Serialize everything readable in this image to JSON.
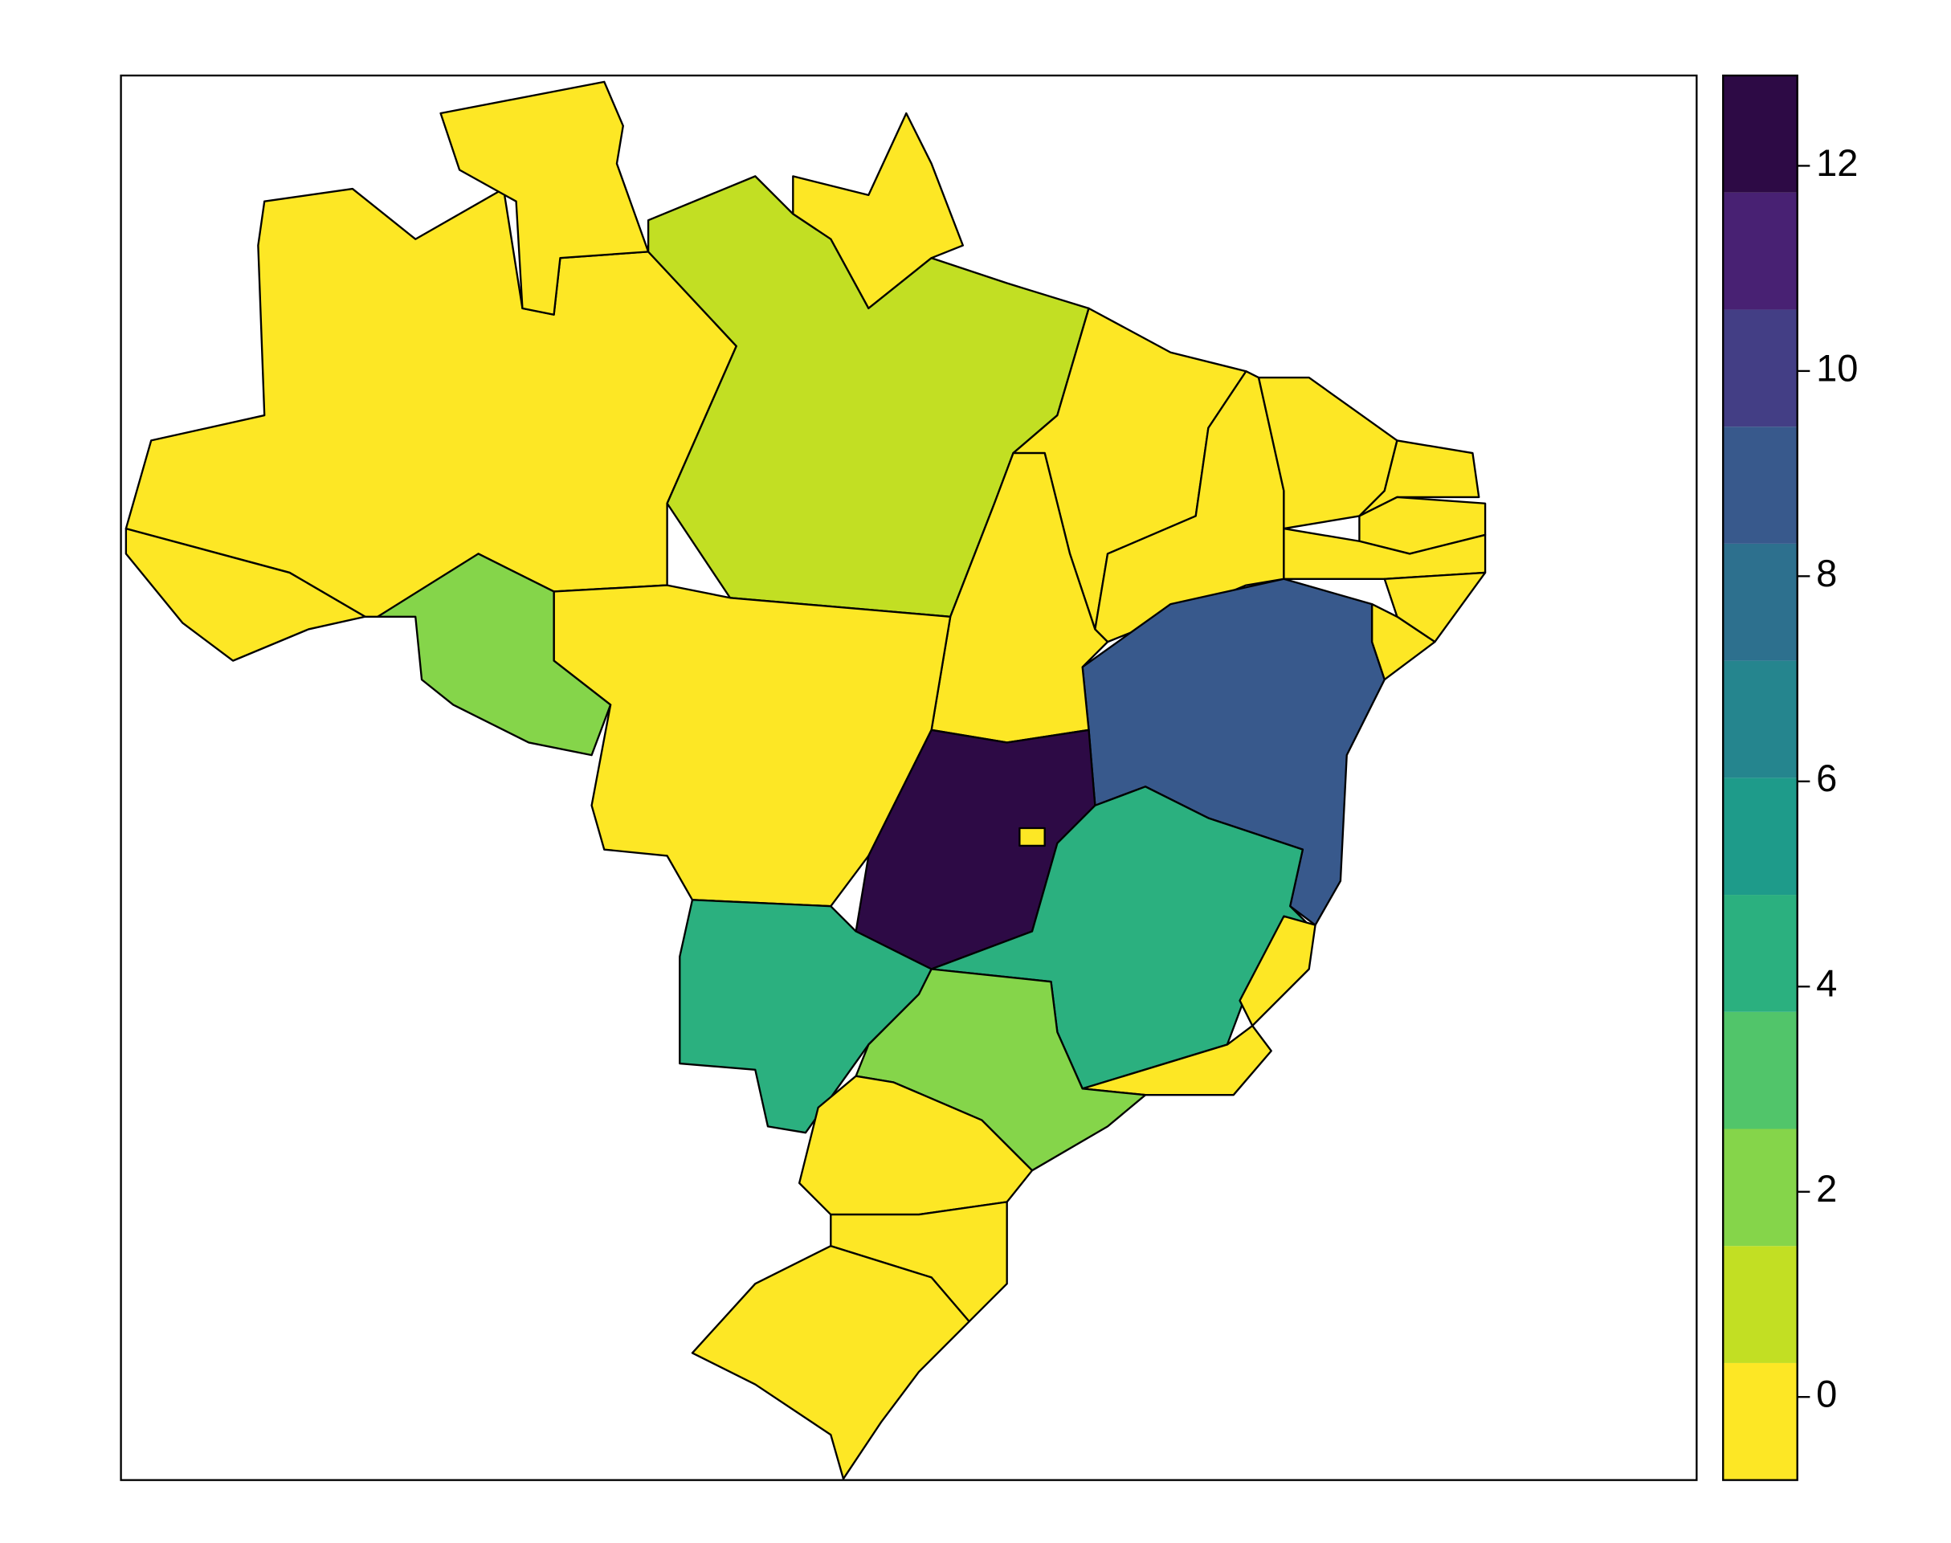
{
  "chart_data": {
    "type": "choropleth",
    "values": [
      0,
      0,
      0,
      0,
      1,
      0,
      0,
      0,
      0,
      0,
      0,
      0,
      0,
      9,
      0,
      0,
      2,
      12,
      0,
      4,
      0,
      0,
      4,
      2,
      0,
      0,
      0
    ],
    "zlim": [
      -0.81,
      12.88
    ],
    "zticks": [
      0,
      2,
      4,
      6,
      8,
      10,
      12
    ],
    "colors": [
      "#FDE725",
      "#C2DF23",
      "#85D54A",
      "#51C56A",
      "#2BB07F",
      "#1E9B8A",
      "#25858E",
      "#2D708E",
      "#38598C",
      "#433E85",
      "#482173",
      "#2D0A45"
    ]
  }
}
